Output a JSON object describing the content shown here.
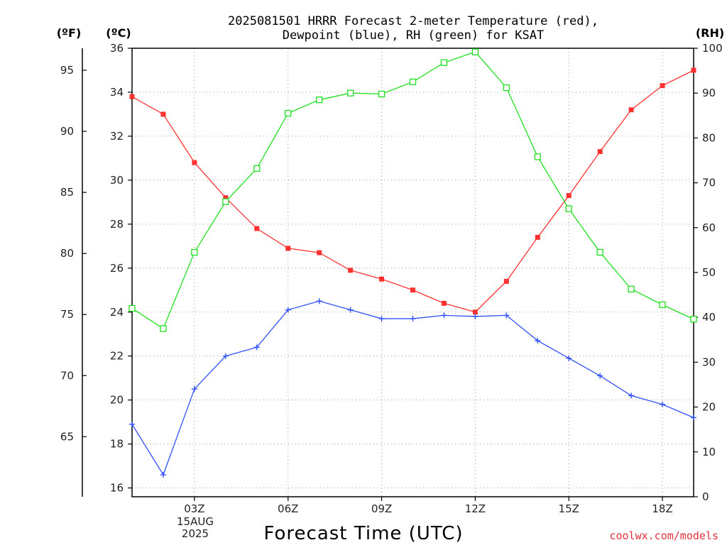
{
  "header": {
    "title_line1": "2025081501 HRRR Forecast 2-meter Temperature (red),",
    "title_line2": "Dewpoint (blue), RH (green) for KSAT",
    "unit_f": "(ºF)",
    "unit_c": "(ºC)",
    "unit_rh": "(RH)"
  },
  "footer": {
    "xlabel": "Forecast Time (UTC)",
    "date_line1": "15AUG",
    "date_line2": "2025",
    "watermark": "coolwx.com/models"
  },
  "chart_data": {
    "type": "line",
    "x": [
      1,
      2,
      3,
      4,
      5,
      6,
      7,
      8,
      9,
      10,
      11,
      12,
      13,
      14,
      15,
      16,
      17,
      18,
      19
    ],
    "xlim": [
      1,
      19
    ],
    "x_ticks": [
      {
        "value": 3,
        "label": "03Z"
      },
      {
        "value": 6,
        "label": "06Z"
      },
      {
        "value": 9,
        "label": "09Z"
      },
      {
        "value": 12,
        "label": "12Z"
      },
      {
        "value": 15,
        "label": "15Z"
      },
      {
        "value": 18,
        "label": "18Z"
      }
    ],
    "xlabel": "Forecast Time (UTC)",
    "celsius_axis": {
      "ylim": [
        15.6,
        36
      ],
      "ticks": [
        16,
        18,
        20,
        22,
        24,
        26,
        28,
        30,
        32,
        34,
        36
      ]
    },
    "fahrenheit_axis": {
      "ticks": [
        65,
        70,
        75,
        80,
        85,
        90,
        95
      ]
    },
    "rh_axis": {
      "ylim": [
        0,
        100
      ],
      "ticks": [
        0,
        10,
        20,
        30,
        40,
        50,
        60,
        70,
        80,
        90,
        100
      ]
    },
    "grid": true,
    "series": [
      {
        "name": "Temperature",
        "axis": "celsius",
        "color": "#ff3030",
        "marker": "filled-square",
        "values": [
          33.8,
          33.0,
          30.8,
          29.2,
          27.8,
          26.9,
          26.7,
          25.9,
          25.5,
          25.0,
          24.4,
          24.0,
          25.4,
          27.4,
          29.3,
          31.3,
          33.2,
          34.3,
          35.0
        ]
      },
      {
        "name": "Dewpoint",
        "axis": "celsius",
        "color": "#3050ff",
        "marker": "plus",
        "values": [
          18.9,
          16.6,
          20.5,
          22.0,
          22.4,
          24.1,
          24.5,
          24.1,
          23.7,
          23.7,
          23.85,
          23.8,
          23.85,
          22.7,
          21.9,
          21.1,
          20.2,
          19.8,
          19.2
        ]
      },
      {
        "name": "RH",
        "axis": "rh",
        "color": "#20e020",
        "marker": "open-square",
        "values": [
          42,
          37.5,
          54.5,
          65.8,
          73.2,
          85.5,
          88.5,
          90,
          89.8,
          92.5,
          96.8,
          99.2,
          91.2,
          75.8,
          64.2,
          54.5,
          46.3,
          42.8,
          39.6
        ]
      }
    ]
  }
}
